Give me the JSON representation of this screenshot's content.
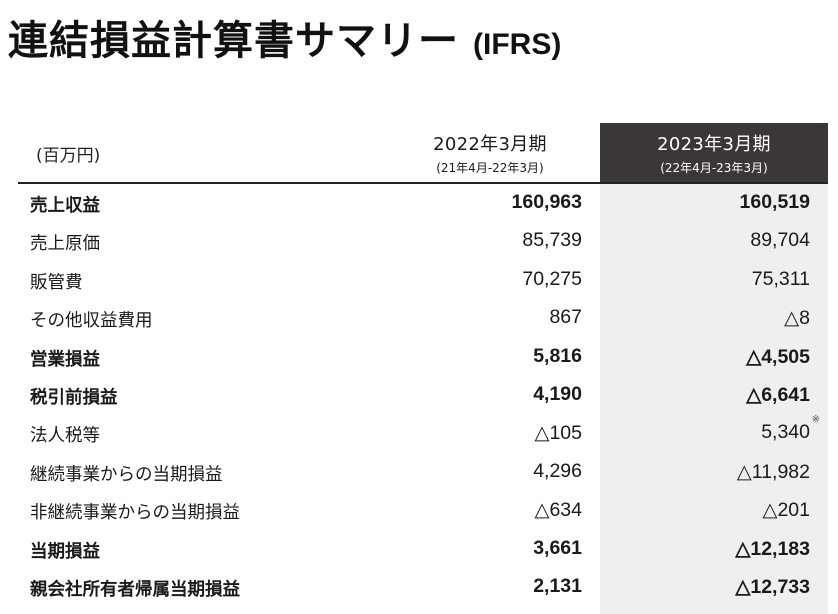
{
  "title": {
    "main": "連結損益計算書サマリー",
    "sub": "(IFRS)"
  },
  "table": {
    "unit": "(百万円)",
    "periods": [
      {
        "label": "2022年3月期",
        "range": "(21年4月-22年3月)"
      },
      {
        "label": "2023年3月期",
        "range": "(22年4月-23年3月)"
      }
    ],
    "rows": [
      {
        "label": "売上収益",
        "prev": "160,963",
        "cur": "160,519",
        "bold": true
      },
      {
        "label": "売上原価",
        "prev": "85,739",
        "cur": "89,704",
        "bold": false
      },
      {
        "label": "販管費",
        "prev": "70,275",
        "cur": "75,311",
        "bold": false
      },
      {
        "label": "その他収益費用",
        "prev": "867",
        "cur": "△8",
        "bold": false
      },
      {
        "label": "営業損益",
        "prev": "5,816",
        "cur": "△4,505",
        "bold": true
      },
      {
        "label": "税引前損益",
        "prev": "4,190",
        "cur": "△6,641",
        "bold": true
      },
      {
        "label": "法人税等",
        "prev": "△105",
        "cur": "5,340",
        "bold": false,
        "note": "※"
      },
      {
        "label": "継続事業からの当期損益",
        "prev": "4,296",
        "cur": "△11,982",
        "bold": false
      },
      {
        "label": "非継続事業からの当期損益",
        "prev": "△634",
        "cur": "△201",
        "bold": false
      },
      {
        "label": "当期損益",
        "prev": "3,661",
        "cur": "△12,183",
        "bold": true
      },
      {
        "label": "親会社所有者帰属当期損益",
        "prev": "2,131",
        "cur": "△12,733",
        "bold": true
      }
    ]
  }
}
